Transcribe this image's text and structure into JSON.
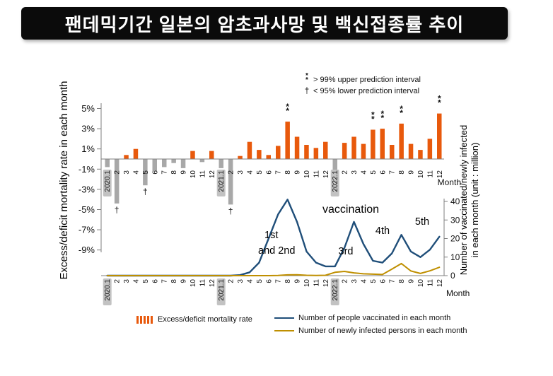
{
  "title": "팬데믹기간 일본의 암초과사망 및 백신접종률 추이",
  "prediction_key": {
    "upper_symbol": "**",
    "upper_label": "> 99% upper prediction interval",
    "lower_symbol": "†",
    "lower_label": "< 95% lower prediction interval"
  },
  "axes": {
    "left_title": "Excess/deficit mortality rate in each month",
    "right_title_line1": "Number of vaccinated/newly infected",
    "right_title_line2": "in each month   (unit : million)",
    "month_label": "Month"
  },
  "annotations": {
    "vaccination": "vaccination",
    "first_second_line1": "1st",
    "first_second_line2": "and 2nd",
    "third": "3rd",
    "fourth": "4th",
    "fifth": "5th"
  },
  "legend": [
    {
      "label": "Excess/deficit mortality rate",
      "swatch": "orange-bars"
    },
    {
      "label": "Number of people vaccinated in each month",
      "swatch": "blue-line"
    },
    {
      "label": "Number of newly infected persons in each month",
      "swatch": "yellow-line"
    }
  ],
  "colors": {
    "bar_positive": "#e8590c",
    "bar_negative": "#a8a8a8",
    "vaccinated_line": "#1f4e79",
    "infected_line": "#bf8f00",
    "title_bg": "#0b0b0b",
    "title_fg": "#ffffff",
    "axis": "#7f7f7f",
    "highlight_box": "#c2c2c2"
  },
  "chart_data": {
    "type": "bar+line combo",
    "categories": [
      "2020.1",
      "2",
      "3",
      "4",
      "5",
      "6",
      "7",
      "8",
      "9",
      "10",
      "11",
      "12",
      "2021.1",
      "2",
      "3",
      "4",
      "5",
      "6",
      "7",
      "8",
      "9",
      "10",
      "11",
      "12",
      "2022.1",
      "2",
      "3",
      "4",
      "5",
      "6",
      "7",
      "8",
      "9",
      "10",
      "11",
      "12"
    ],
    "highlighted_categories": [
      "2020.1",
      "2021.1",
      "2022.1"
    ],
    "left_axis": {
      "title": "Excess/deficit mortality rate in each month",
      "unit": "%",
      "tick_values": [
        5,
        3,
        1,
        -1,
        -3,
        -5,
        -7,
        -9
      ],
      "tick_labels": [
        "5%",
        "3%",
        "1%",
        "-1%",
        "-3%",
        "-5%",
        "-7%",
        "-9%"
      ],
      "min": -9,
      "max": 5
    },
    "right_axis": {
      "title": "Number of vaccinated/newly infected in each month (unit : million)",
      "tick_values": [
        0,
        10,
        20,
        30,
        40
      ],
      "min": 0,
      "max": 40
    },
    "series": [
      {
        "name": "Excess/deficit mortality rate",
        "type": "bar",
        "unit": "%",
        "values": [
          -0.8,
          -4.4,
          0.4,
          1.0,
          -2.6,
          -1.2,
          -0.8,
          -0.4,
          -0.9,
          0.8,
          -0.3,
          0.8,
          -0.9,
          -4.5,
          0.3,
          1.7,
          0.9,
          0.4,
          1.3,
          3.7,
          2.2,
          1.4,
          1.1,
          1.7,
          -1.3,
          1.6,
          2.2,
          1.5,
          2.9,
          3.0,
          1.4,
          3.5,
          1.5,
          0.9,
          2.0,
          4.5
        ],
        "upper_99_marked_indices": [
          19,
          28,
          29,
          31,
          35
        ],
        "lower_95_marked_indices": [
          1,
          4,
          13
        ]
      },
      {
        "name": "Number of people vaccinated in each month",
        "type": "line",
        "unit": "million",
        "values": [
          0,
          0,
          0,
          0,
          0,
          0,
          0,
          0,
          0,
          0,
          0,
          0,
          0,
          0,
          0.3,
          1.8,
          7,
          20,
          33,
          41,
          29,
          13,
          7,
          5,
          5,
          15,
          29,
          17,
          8,
          7,
          12,
          22,
          13,
          10,
          14,
          21
        ]
      },
      {
        "name": "Number of newly infected persons in each month",
        "type": "line",
        "unit": "million",
        "values": [
          0,
          0,
          0,
          0,
          0,
          0,
          0,
          0,
          0,
          0,
          0,
          0,
          0,
          0,
          0,
          0,
          0,
          0,
          0.1,
          0.4,
          0.5,
          0.2,
          0.1,
          0.2,
          1.8,
          2.3,
          1.5,
          1.0,
          0.8,
          0.6,
          3.5,
          6.5,
          2.5,
          1.2,
          2.6,
          4.5
        ]
      }
    ]
  }
}
